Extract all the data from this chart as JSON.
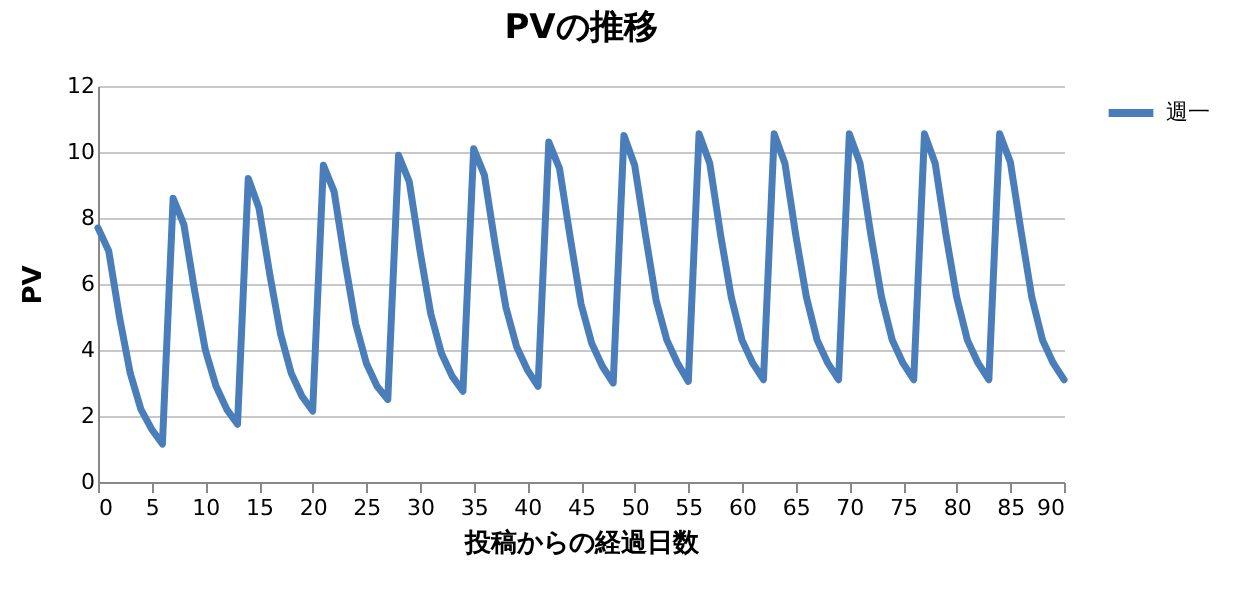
{
  "chart_data": {
    "type": "line",
    "title": "PVの推移",
    "xlabel": "投稿からの経過日数",
    "ylabel": "PV",
    "x": [
      0,
      1,
      2,
      3,
      4,
      5,
      6,
      7,
      8,
      9,
      10,
      11,
      12,
      13,
      14,
      15,
      16,
      17,
      18,
      19,
      20,
      21,
      22,
      23,
      24,
      25,
      26,
      27,
      28,
      29,
      30,
      31,
      32,
      33,
      34,
      35,
      36,
      37,
      38,
      39,
      40,
      41,
      42,
      43,
      44,
      45,
      46,
      47,
      48,
      49,
      50,
      51,
      52,
      53,
      54,
      55,
      56,
      57,
      58,
      59,
      60,
      61,
      62,
      63,
      64,
      65,
      66,
      67,
      68,
      69,
      70,
      71,
      72,
      73,
      74,
      75,
      76,
      77,
      78,
      79,
      80,
      81,
      82,
      83,
      84,
      85,
      86,
      87,
      88,
      89,
      90
    ],
    "series": [
      {
        "name": "週一",
        "color": "#4a7ebb",
        "values": [
          7.7,
          7.0,
          5.0,
          3.3,
          2.2,
          1.6,
          1.15,
          8.6,
          7.8,
          5.8,
          4.0,
          2.9,
          2.2,
          1.75,
          9.2,
          8.3,
          6.3,
          4.5,
          3.3,
          2.6,
          2.15,
          9.6,
          8.8,
          6.7,
          4.8,
          3.6,
          2.9,
          2.5,
          9.9,
          9.1,
          7.0,
          5.1,
          3.9,
          3.2,
          2.75,
          10.1,
          9.3,
          7.2,
          5.3,
          4.1,
          3.4,
          2.9,
          10.3,
          9.5,
          7.4,
          5.4,
          4.2,
          3.5,
          3.0,
          10.5,
          9.6,
          7.5,
          5.5,
          4.3,
          3.6,
          3.05,
          10.55,
          9.65,
          7.5,
          5.6,
          4.3,
          3.6,
          3.1,
          10.55,
          9.65,
          7.5,
          5.6,
          4.3,
          3.6,
          3.1,
          10.55,
          9.65,
          7.5,
          5.6,
          4.3,
          3.6,
          3.1,
          10.55,
          9.65,
          7.5,
          5.6,
          4.3,
          3.6,
          3.1,
          10.55,
          9.7,
          7.6,
          5.6,
          4.3,
          3.6,
          3.1
        ]
      }
    ],
    "xlim": [
      0,
      90
    ],
    "xticks": [
      0,
      5,
      10,
      15,
      20,
      25,
      30,
      35,
      40,
      45,
      50,
      55,
      60,
      65,
      70,
      75,
      80,
      85,
      90
    ],
    "ylim": [
      0,
      12
    ],
    "yticks": [
      0,
      2,
      4,
      6,
      8,
      10,
      12
    ],
    "grid": "y",
    "legend": "right",
    "marker": "none",
    "line_style": "solid"
  }
}
